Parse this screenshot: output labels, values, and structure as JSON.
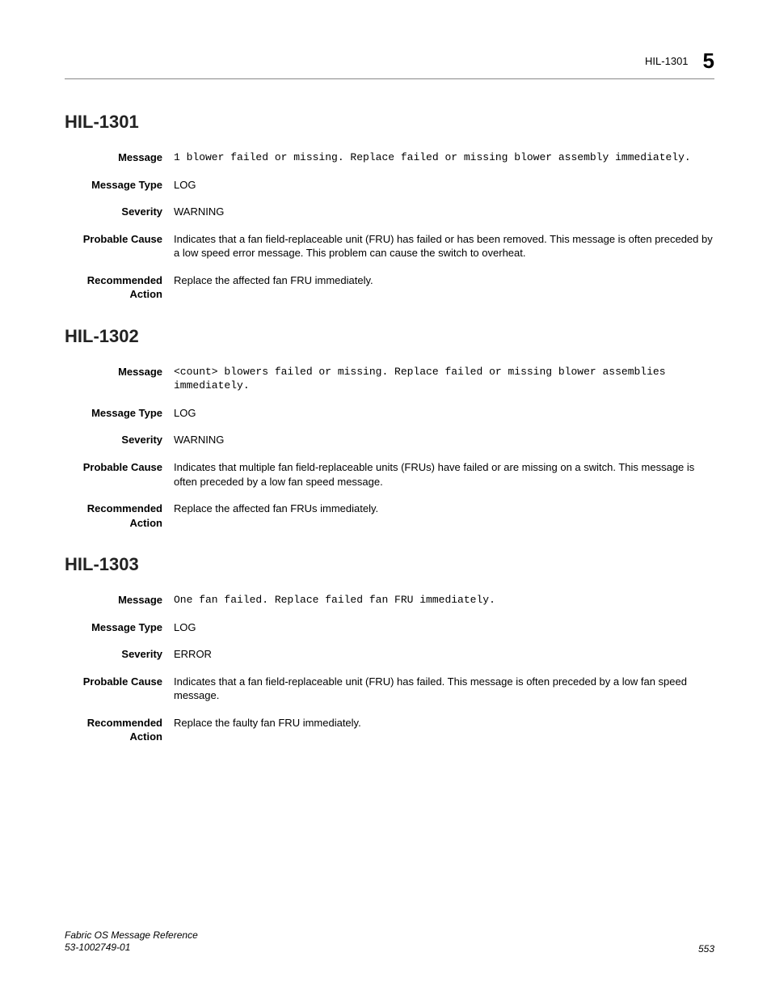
{
  "header": {
    "code": "HIL-1301",
    "chapter": "5"
  },
  "sections": [
    {
      "id": "HIL-1301",
      "rows": [
        {
          "label": "Message",
          "value": "1 blower failed or missing. Replace failed or missing blower assembly immediately.",
          "mono": true
        },
        {
          "label": "Message Type",
          "value": "LOG"
        },
        {
          "label": "Severity",
          "value": "WARNING"
        },
        {
          "label": "Probable Cause",
          "value": "Indicates that a fan field-replaceable unit (FRU) has failed or has been removed. This message is often preceded by a low speed error message. This problem can cause the switch to overheat."
        },
        {
          "label": "Recommended Action",
          "value": "Replace the affected fan FRU immediately."
        }
      ]
    },
    {
      "id": "HIL-1302",
      "rows": [
        {
          "label": "Message",
          "value": "<count> blowers failed or missing. Replace failed or missing blower assemblies immediately.",
          "mono": true
        },
        {
          "label": "Message Type",
          "value": "LOG"
        },
        {
          "label": "Severity",
          "value": "WARNING"
        },
        {
          "label": "Probable Cause",
          "value": "Indicates that multiple fan field-replaceable units (FRUs) have failed or are missing on a switch. This message is often preceded by a low fan speed message."
        },
        {
          "label": "Recommended Action",
          "value": "Replace the affected fan FRUs immediately."
        }
      ]
    },
    {
      "id": "HIL-1303",
      "rows": [
        {
          "label": "Message",
          "value": "One fan failed. Replace failed fan FRU immediately.",
          "mono": true
        },
        {
          "label": "Message Type",
          "value": "LOG"
        },
        {
          "label": "Severity",
          "value": "ERROR"
        },
        {
          "label": "Probable Cause",
          "value": "Indicates that a fan field-replaceable unit (FRU) has failed. This message is often preceded by a low fan speed message."
        },
        {
          "label": "Recommended Action",
          "value": "Replace the faulty fan FRU immediately."
        }
      ]
    }
  ],
  "footer": {
    "title": "Fabric OS Message Reference",
    "docnum": "53-1002749-01",
    "page": "553"
  }
}
